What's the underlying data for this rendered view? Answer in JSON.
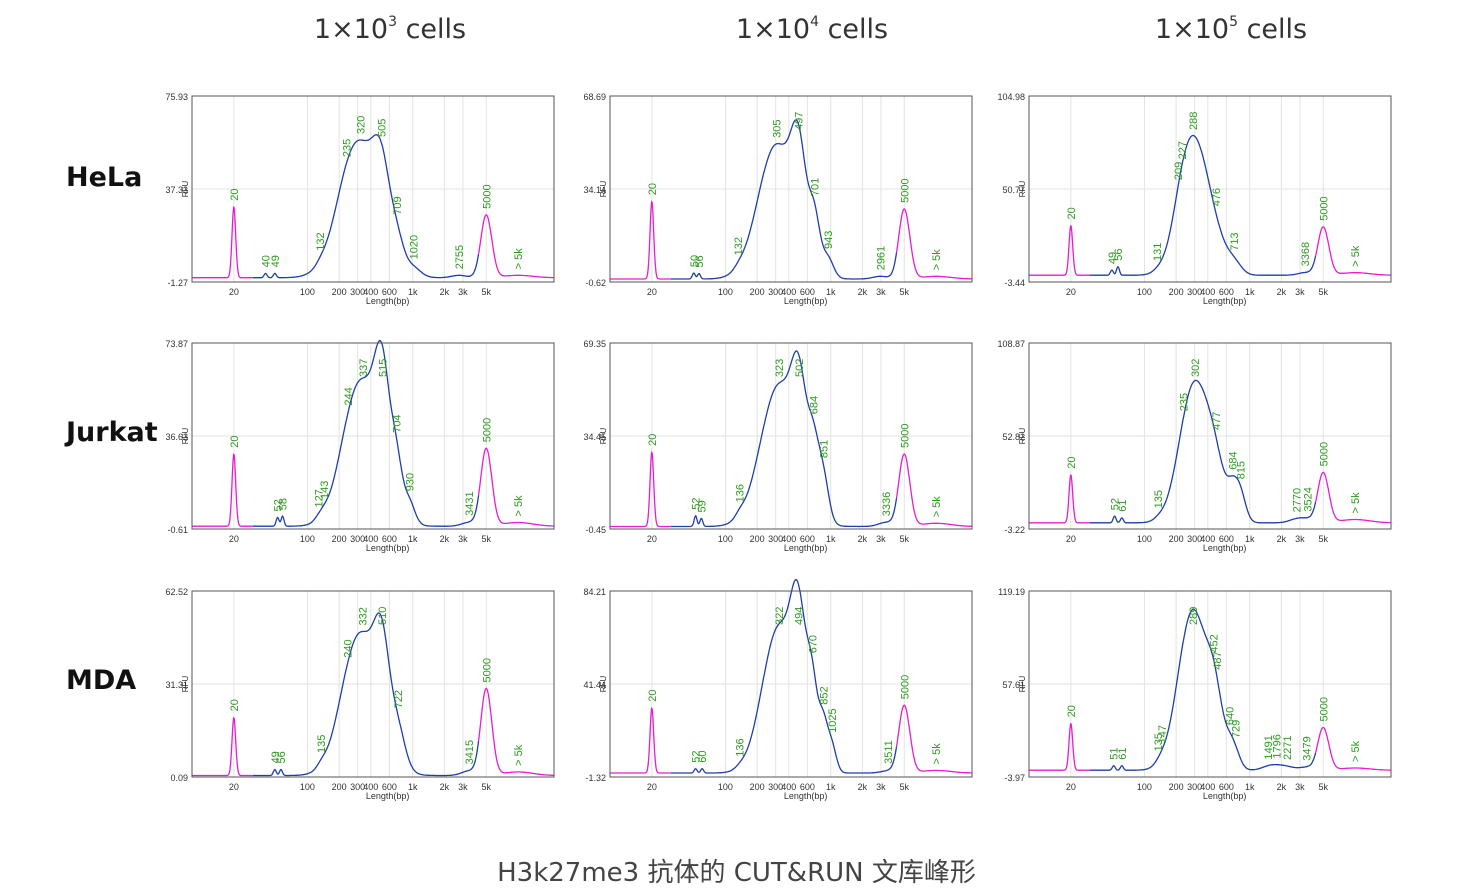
{
  "caption": "H3k27me3 抗体的 CUT&RUN 文库峰形",
  "columns": [
    {
      "pre": "1×10",
      "exp": "3",
      "post": " cells"
    },
    {
      "pre": "1×10",
      "exp": "4",
      "post": " cells"
    },
    {
      "pre": "1×10",
      "exp": "5",
      "post": " cells"
    }
  ],
  "rows": [
    "HeLa",
    "Jurkat",
    "MDA"
  ],
  "colors": {
    "marker": "#e41fd0",
    "sample": "#1f3fa8",
    "label": "#2e9a1f",
    "frame": "#555555",
    "grid": "#e3e3e3"
  },
  "chart_data": [
    {
      "type": "line",
      "row": "HeLa",
      "column": "1×10^3 cells",
      "ylabel": "RFU",
      "xlabel": "Length(bp)",
      "yticks": [
        "75.93",
        "37.33",
        "-1.27"
      ],
      "ylim": [
        -1.27,
        75.93
      ],
      "xticks": [
        "20",
        "100",
        "200",
        "300",
        "400",
        "600",
        "1k",
        "2k",
        "3k",
        "5k"
      ],
      "peaks": [
        {
          "label": "20",
          "x": 20,
          "y": 29.5,
          "w": 0.05,
          "marker": true
        },
        {
          "label": "40",
          "x": 40,
          "y": 1.8,
          "w": 0.04
        },
        {
          "label": "49",
          "x": 49,
          "y": 1.8,
          "w": 0.04
        },
        {
          "label": "132",
          "x": 132,
          "y": 0.8,
          "w": 0.12
        },
        {
          "label": "235",
          "x": 235,
          "y": 6,
          "w": 0.35
        },
        {
          "label": "320",
          "x": 320,
          "y": 53,
          "w": 0.55
        },
        {
          "label": "505",
          "x": 505,
          "y": 24,
          "w": 0.22
        },
        {
          "label": "709",
          "x": 709,
          "y": 9,
          "w": 0.18
        },
        {
          "label": "1020",
          "x": 1020,
          "y": 3,
          "w": 0.2
        },
        {
          "label": "2755",
          "x": 2755,
          "y": 1,
          "w": 0.2
        },
        {
          "label": "5000",
          "x": 5000,
          "y": 26,
          "w": 0.15,
          "marker": true
        },
        {
          "label": "> 5k",
          "x": 10000,
          "y": 1,
          "w": 0.4,
          "marker": true
        }
      ]
    },
    {
      "type": "line",
      "row": "HeLa",
      "column": "1×10^4 cells",
      "ylabel": "RFU",
      "xlabel": "Length(bp)",
      "yticks": [
        "68.69",
        "34.14",
        "-0.62"
      ],
      "ylim": [
        -0.62,
        68.69
      ],
      "xticks": [
        "20",
        "100",
        "200",
        "300",
        "400",
        "600",
        "1k",
        "2k",
        "3k",
        "5k"
      ],
      "peaks": [
        {
          "label": "20",
          "x": 20,
          "y": 29,
          "w": 0.05,
          "marker": true
        },
        {
          "label": "50",
          "x": 50,
          "y": 2.2,
          "w": 0.04
        },
        {
          "label": "56",
          "x": 56,
          "y": 2,
          "w": 0.04
        },
        {
          "label": "132",
          "x": 132,
          "y": 0.8,
          "w": 0.12
        },
        {
          "label": "305",
          "x": 305,
          "y": 50,
          "w": 0.5
        },
        {
          "label": "497",
          "x": 497,
          "y": 33,
          "w": 0.2
        },
        {
          "label": "701",
          "x": 701,
          "y": 19,
          "w": 0.15
        },
        {
          "label": "943",
          "x": 943,
          "y": 7,
          "w": 0.15
        },
        {
          "label": "2961",
          "x": 2961,
          "y": 1,
          "w": 0.2
        },
        {
          "label": "5000",
          "x": 5000,
          "y": 26,
          "w": 0.15,
          "marker": true
        },
        {
          "label": "> 5k",
          "x": 10000,
          "y": 1,
          "w": 0.4,
          "marker": true
        }
      ]
    },
    {
      "type": "line",
      "row": "HeLa",
      "column": "1×10^5 cells",
      "ylabel": "RFU",
      "xlabel": "Length(bp)",
      "yticks": [
        "104.98",
        "50.77",
        "-3.44"
      ],
      "ylim": [
        -3.44,
        104.98
      ],
      "xticks": [
        "20",
        "100",
        "200",
        "300",
        "400",
        "600",
        "1k",
        "2k",
        "3k",
        "5k"
      ],
      "peaks": [
        {
          "label": "20",
          "x": 20,
          "y": 29,
          "w": 0.05,
          "marker": true
        },
        {
          "label": "49",
          "x": 49,
          "y": 3,
          "w": 0.04
        },
        {
          "label": "56",
          "x": 56,
          "y": 5,
          "w": 0.04
        },
        {
          "label": "131",
          "x": 131,
          "y": 0.8,
          "w": 0.12
        },
        {
          "label": "209",
          "x": 209,
          "y": 2,
          "w": 0.2
        },
        {
          "label": "227",
          "x": 227,
          "y": 2,
          "w": 0.2
        },
        {
          "label": "288",
          "x": 288,
          "y": 79,
          "w": 0.4
        },
        {
          "label": "476",
          "x": 476,
          "y": 13,
          "w": 0.3
        },
        {
          "label": "713",
          "x": 713,
          "y": 6,
          "w": 0.2
        },
        {
          "label": "3368",
          "x": 3368,
          "y": 1.5,
          "w": 0.2
        },
        {
          "label": "5000",
          "x": 5000,
          "y": 28,
          "w": 0.15,
          "marker": true
        },
        {
          "label": "> 5k",
          "x": 10000,
          "y": 1.5,
          "w": 0.4,
          "marker": true
        }
      ]
    },
    {
      "type": "line",
      "row": "Jurkat",
      "column": "1×10^3 cells",
      "ylabel": "RFU",
      "xlabel": "Length(bp)",
      "yticks": [
        "73.87",
        "36.63",
        "-0.61"
      ],
      "ylim": [
        -0.61,
        73.87
      ],
      "xticks": [
        "20",
        "100",
        "200",
        "300",
        "400",
        "600",
        "1k",
        "2k",
        "3k",
        "5k"
      ],
      "peaks": [
        {
          "label": "20",
          "x": 20,
          "y": 29,
          "w": 0.05,
          "marker": true
        },
        {
          "label": "52",
          "x": 52,
          "y": 3.5,
          "w": 0.04
        },
        {
          "label": "58",
          "x": 58,
          "y": 4,
          "w": 0.04
        },
        {
          "label": "127",
          "x": 127,
          "y": 1.2,
          "w": 0.12
        },
        {
          "label": "143",
          "x": 143,
          "y": 1.2,
          "w": 0.12
        },
        {
          "label": "244",
          "x": 244,
          "y": 6,
          "w": 0.35
        },
        {
          "label": "337",
          "x": 337,
          "y": 55,
          "w": 0.5
        },
        {
          "label": "515",
          "x": 515,
          "y": 40,
          "w": 0.2
        },
        {
          "label": "704",
          "x": 704,
          "y": 18,
          "w": 0.15
        },
        {
          "label": "930",
          "x": 930,
          "y": 8,
          "w": 0.15
        },
        {
          "label": "3431",
          "x": 3431,
          "y": 1.5,
          "w": 0.2
        },
        {
          "label": "5000",
          "x": 5000,
          "y": 31,
          "w": 0.15,
          "marker": true
        },
        {
          "label": "> 5k",
          "x": 10000,
          "y": 1.5,
          "w": 0.4,
          "marker": true
        }
      ]
    },
    {
      "type": "line",
      "row": "Jurkat",
      "column": "1×10^4 cells",
      "ylabel": "RFU",
      "xlabel": "Length(bp)",
      "yticks": [
        "69.35",
        "34.45",
        "-0.45"
      ],
      "ylim": [
        -0.45,
        69.35
      ],
      "xticks": [
        "20",
        "100",
        "200",
        "300",
        "400",
        "600",
        "1k",
        "2k",
        "3k",
        "5k"
      ],
      "peaks": [
        {
          "label": "20",
          "x": 20,
          "y": 28,
          "w": 0.05,
          "marker": true
        },
        {
          "label": "52",
          "x": 52,
          "y": 4,
          "w": 0.04
        },
        {
          "label": "59",
          "x": 59,
          "y": 3,
          "w": 0.04
        },
        {
          "label": "136",
          "x": 136,
          "y": 1.5,
          "w": 0.12
        },
        {
          "label": "323",
          "x": 323,
          "y": 53,
          "w": 0.5
        },
        {
          "label": "502",
          "x": 502,
          "y": 34,
          "w": 0.2
        },
        {
          "label": "684",
          "x": 684,
          "y": 22,
          "w": 0.15
        },
        {
          "label": "851",
          "x": 851,
          "y": 16,
          "w": 0.15
        },
        {
          "label": "3336",
          "x": 3336,
          "y": 1.5,
          "w": 0.2
        },
        {
          "label": "5000",
          "x": 5000,
          "y": 27,
          "w": 0.15,
          "marker": true
        },
        {
          "label": "> 5k",
          "x": 10000,
          "y": 1.2,
          "w": 0.4,
          "marker": true
        }
      ]
    },
    {
      "type": "line",
      "row": "Jurkat",
      "column": "1×10^5 cells",
      "ylabel": "RFU",
      "xlabel": "Length(bp)",
      "yticks": [
        "108.87",
        "52.82",
        "-3.22"
      ],
      "ylim": [
        -3.22,
        108.87
      ],
      "xticks": [
        "20",
        "100",
        "200",
        "300",
        "400",
        "600",
        "1k",
        "2k",
        "3k",
        "5k"
      ],
      "peaks": [
        {
          "label": "20",
          "x": 20,
          "y": 29,
          "w": 0.05,
          "marker": true
        },
        {
          "label": "52",
          "x": 52,
          "y": 4,
          "w": 0.04
        },
        {
          "label": "61",
          "x": 61,
          "y": 3,
          "w": 0.04
        },
        {
          "label": "135",
          "x": 135,
          "y": 1,
          "w": 0.12
        },
        {
          "label": "235",
          "x": 235,
          "y": 3,
          "w": 0.35
        },
        {
          "label": "302",
          "x": 302,
          "y": 82,
          "w": 0.4
        },
        {
          "label": "477",
          "x": 477,
          "y": 22,
          "w": 0.25
        },
        {
          "label": "684",
          "x": 684,
          "y": 15,
          "w": 0.15
        },
        {
          "label": "815",
          "x": 815,
          "y": 16,
          "w": 0.15
        },
        {
          "label": "2770",
          "x": 2770,
          "y": 2,
          "w": 0.2
        },
        {
          "label": "3524",
          "x": 3524,
          "y": 2,
          "w": 0.2
        },
        {
          "label": "5000",
          "x": 5000,
          "y": 30,
          "w": 0.15,
          "marker": true
        },
        {
          "label": "> 5k",
          "x": 10000,
          "y": 2,
          "w": 0.4,
          "marker": true
        }
      ]
    },
    {
      "type": "line",
      "row": "MDA",
      "column": "1×10^3 cells",
      "ylabel": "RFU",
      "xlabel": "Length(bp)",
      "yticks": [
        "62.52",
        "31.31",
        "0.09"
      ],
      "ylim": [
        0.09,
        62.52
      ],
      "xticks": [
        "20",
        "100",
        "200",
        "300",
        "400",
        "600",
        "1k",
        "2k",
        "3k",
        "5k"
      ],
      "peaks": [
        {
          "label": "20",
          "x": 20,
          "y": 19.5,
          "w": 0.05,
          "marker": true
        },
        {
          "label": "49",
          "x": 49,
          "y": 2,
          "w": 0.04
        },
        {
          "label": "56",
          "x": 56,
          "y": 2,
          "w": 0.04
        },
        {
          "label": "135",
          "x": 135,
          "y": 1.2,
          "w": 0.12
        },
        {
          "label": "240",
          "x": 240,
          "y": 5,
          "w": 0.35
        },
        {
          "label": "332",
          "x": 332,
          "y": 45,
          "w": 0.5
        },
        {
          "label": "510",
          "x": 510,
          "y": 26,
          "w": 0.2
        },
        {
          "label": "722",
          "x": 722,
          "y": 11,
          "w": 0.2
        },
        {
          "label": "3415",
          "x": 3415,
          "y": 1.5,
          "w": 0.2
        },
        {
          "label": "5000",
          "x": 5000,
          "y": 29,
          "w": 0.15,
          "marker": true
        },
        {
          "label": "> 5k",
          "x": 10000,
          "y": 1.2,
          "w": 0.4,
          "marker": true
        }
      ]
    },
    {
      "type": "line",
      "row": "MDA",
      "column": "1×10^4 cells",
      "ylabel": "RFU",
      "xlabel": "Length(bp)",
      "yticks": [
        "84.21",
        "41.44",
        "-1.32"
      ],
      "ylim": [
        -1.32,
        84.21
      ],
      "xticks": [
        "20",
        "100",
        "200",
        "300",
        "400",
        "600",
        "1k",
        "2k",
        "3k",
        "5k"
      ],
      "peaks": [
        {
          "label": "20",
          "x": 20,
          "y": 30,
          "w": 0.05,
          "marker": true
        },
        {
          "label": "52",
          "x": 52,
          "y": 2,
          "w": 0.04
        },
        {
          "label": "60",
          "x": 60,
          "y": 2,
          "w": 0.04
        },
        {
          "label": "136",
          "x": 136,
          "y": 0.8,
          "w": 0.12
        },
        {
          "label": "322",
          "x": 322,
          "y": 67,
          "w": 0.45
        },
        {
          "label": "494",
          "x": 494,
          "y": 52,
          "w": 0.2
        },
        {
          "label": "670",
          "x": 670,
          "y": 34,
          "w": 0.15
        },
        {
          "label": "852",
          "x": 852,
          "y": 20,
          "w": 0.12
        },
        {
          "label": "1025",
          "x": 1025,
          "y": 12,
          "w": 0.12
        },
        {
          "label": "3511",
          "x": 3511,
          "y": 1,
          "w": 0.2
        },
        {
          "label": "5000",
          "x": 5000,
          "y": 31,
          "w": 0.15,
          "marker": true
        },
        {
          "label": "> 5k",
          "x": 10000,
          "y": 1.2,
          "w": 0.4,
          "marker": true
        }
      ]
    },
    {
      "type": "line",
      "row": "MDA",
      "column": "1×10^5 cells",
      "ylabel": "RFU",
      "xlabel": "Length(bp)",
      "yticks": [
        "119.19",
        "57.61",
        "-3.97"
      ],
      "ylim": [
        -3.97,
        119.19
      ],
      "xticks": [
        "20",
        "100",
        "200",
        "300",
        "400",
        "600",
        "1k",
        "2k",
        "3k",
        "5k"
      ],
      "peaks": [
        {
          "label": "20",
          "x": 20,
          "y": 31,
          "w": 0.05,
          "marker": true
        },
        {
          "label": "51",
          "x": 51,
          "y": 3,
          "w": 0.04
        },
        {
          "label": "61",
          "x": 61,
          "y": 3,
          "w": 0.04
        },
        {
          "label": "135",
          "x": 135,
          "y": 1.2,
          "w": 0.12
        },
        {
          "label": "147",
          "x": 147,
          "y": 1.2,
          "w": 0.12
        },
        {
          "label": "289",
          "x": 289,
          "y": 106,
          "w": 0.4
        },
        {
          "label": "452",
          "x": 452,
          "y": 18,
          "w": 0.2
        },
        {
          "label": "487",
          "x": 487,
          "y": 17,
          "w": 0.2
        },
        {
          "label": "640",
          "x": 640,
          "y": 10,
          "w": 0.15
        },
        {
          "label": "729",
          "x": 729,
          "y": 9,
          "w": 0.15
        },
        {
          "label": "1491",
          "x": 1491,
          "y": 2,
          "w": 0.2
        },
        {
          "label": "1796",
          "x": 1796,
          "y": 2,
          "w": 0.2
        },
        {
          "label": "2271",
          "x": 2271,
          "y": 2,
          "w": 0.2
        },
        {
          "label": "3479",
          "x": 3479,
          "y": 2,
          "w": 0.2
        },
        {
          "label": "5000",
          "x": 5000,
          "y": 28,
          "w": 0.15,
          "marker": true
        },
        {
          "label": "> 5k",
          "x": 10000,
          "y": 1.5,
          "w": 0.4,
          "marker": true
        }
      ]
    }
  ]
}
